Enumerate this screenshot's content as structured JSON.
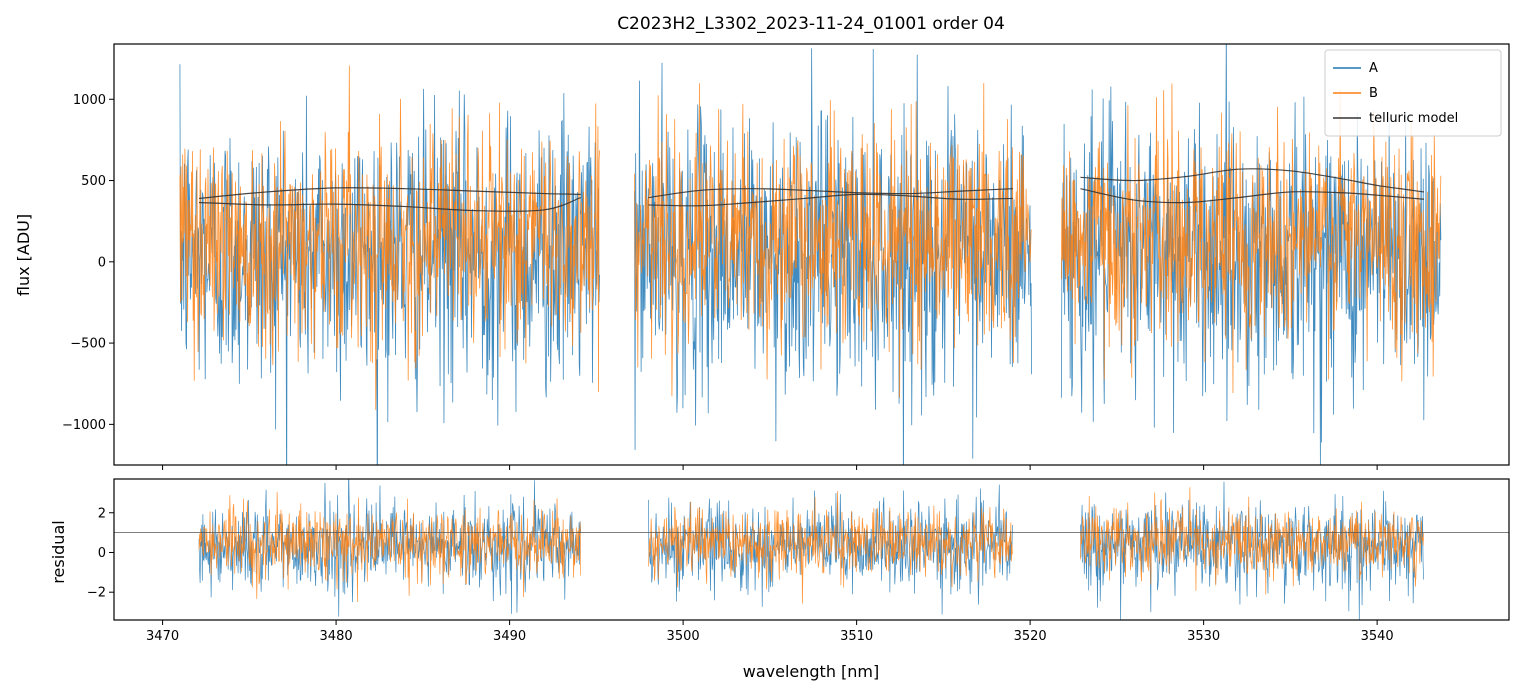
{
  "chart_data": [
    {
      "type": "line",
      "panel": "spectrum",
      "title": "C2023H2_L3302_2023-11-24_01001  order 04",
      "xlabel": "",
      "ylabel": "flux [ADU]",
      "xlim": [
        3467.2,
        3547.6
      ],
      "ylim": [
        -1250,
        1340
      ],
      "yticks": [
        -1000,
        -500,
        0,
        500,
        1000
      ],
      "ytick_labels": [
        "−1000",
        "−500",
        "0",
        "500",
        "1000"
      ],
      "xticks": [
        3470,
        3480,
        3490,
        3500,
        3510,
        3520,
        3530,
        3540
      ],
      "xtick_labels_shown": false,
      "segments": [
        [
          3471.0,
          3495.2
        ],
        [
          3497.2,
          3520.1
        ],
        [
          3521.8,
          3543.7
        ]
      ],
      "series": [
        {
          "name": "A",
          "color": "#1f77b4",
          "noise_center": 50,
          "noise_sigma": 420,
          "description": "noisy flux spectrum, values clipped beyond plot range"
        },
        {
          "name": "B",
          "color": "#ff7f0e",
          "noise_center": 150,
          "noise_sigma": 330,
          "description": "noisy flux spectrum"
        },
        {
          "name": "telluric model",
          "color": "#333333",
          "curves": [
            {
              "segment": 0,
              "x": [
                3472.1,
                3476,
                3480,
                3484,
                3488,
                3492,
                3494.1
              ],
              "y": [
                390,
                430,
                455,
                450,
                435,
                420,
                415
              ]
            },
            {
              "segment": 0,
              "x": [
                3472.1,
                3476,
                3480,
                3484,
                3488,
                3492,
                3494.1
              ],
              "y": [
                365,
                350,
                355,
                340,
                315,
                320,
                395
              ]
            },
            {
              "segment": 1,
              "x": [
                3498.0,
                3501,
                3504,
                3507,
                3510,
                3513,
                3516,
                3519.0
              ],
              "y": [
                395,
                440,
                450,
                440,
                425,
                420,
                435,
                450
              ]
            },
            {
              "segment": 1,
              "x": [
                3498.0,
                3501,
                3504,
                3507,
                3510,
                3513,
                3516,
                3519.0
              ],
              "y": [
                350,
                345,
                365,
                390,
                415,
                405,
                385,
                390
              ]
            },
            {
              "segment": 2,
              "x": [
                3522.9,
                3526,
                3529,
                3532,
                3535,
                3538,
                3540,
                3542.7
              ],
              "y": [
                520,
                500,
                525,
                570,
                560,
                510,
                470,
                430
              ]
            },
            {
              "segment": 2,
              "x": [
                3522.9,
                3526,
                3529,
                3532,
                3535,
                3538,
                3540,
                3542.7
              ],
              "y": [
                450,
                380,
                365,
                395,
                430,
                425,
                410,
                385
              ]
            }
          ]
        }
      ],
      "legend": {
        "location": "top-right",
        "entries": [
          "A",
          "B",
          "telluric model"
        ]
      }
    },
    {
      "type": "line",
      "panel": "residual",
      "xlabel": "wavelength [nm]",
      "ylabel": "residual",
      "xlim": [
        3467.2,
        3547.6
      ],
      "ylim": [
        -3.4,
        3.7
      ],
      "yticks": [
        -2,
        0,
        2
      ],
      "ytick_labels": [
        "−2",
        "0",
        "2"
      ],
      "xticks": [
        3470,
        3480,
        3490,
        3500,
        3510,
        3520,
        3530,
        3540
      ],
      "xtick_labels": [
        "3470",
        "3480",
        "3490",
        "3500",
        "3510",
        "3520",
        "3530",
        "3540"
      ],
      "reference_line": 1.0,
      "segments": [
        [
          3472.1,
          3494.1
        ],
        [
          3498.0,
          3519.0
        ],
        [
          3522.9,
          3542.7
        ]
      ],
      "series": [
        {
          "name": "A",
          "color": "#1f77b4",
          "noise_center": 0.3,
          "noise_sigma": 1.1
        },
        {
          "name": "B",
          "color": "#ff7f0e",
          "noise_center": 0.5,
          "noise_sigma": 0.85
        }
      ]
    }
  ]
}
